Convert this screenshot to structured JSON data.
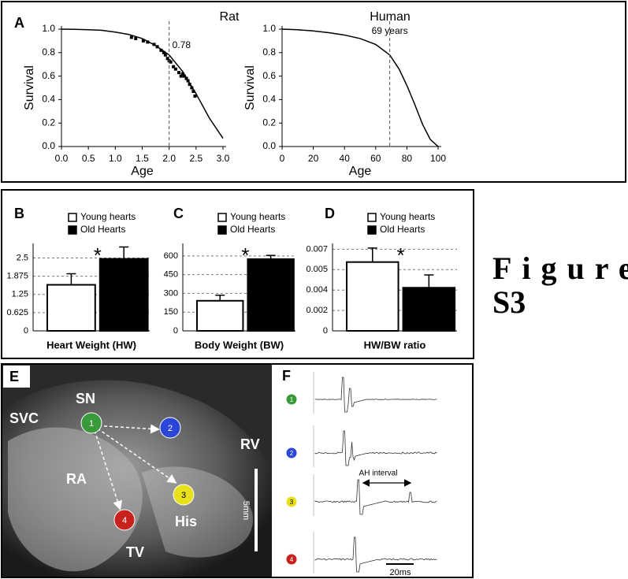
{
  "chart_data": [
    {
      "type": "line",
      "panel": "A",
      "title": "Rat",
      "xlabel": "Age",
      "ylabel": "Survival",
      "x": [
        0,
        0.25,
        0.5,
        0.75,
        1,
        1.25,
        1.5,
        1.75,
        2,
        2.25,
        2.5,
        2.75,
        3
      ],
      "values": [
        1,
        0.998,
        0.995,
        0.99,
        0.975,
        0.955,
        0.92,
        0.86,
        0.78,
        0.64,
        0.45,
        0.24,
        0.07
      ],
      "points_x": [
        1.3,
        1.38,
        1.52,
        1.6,
        1.72,
        1.78,
        1.85,
        1.9,
        1.93,
        1.97,
        2.0,
        2.03,
        2.08,
        2.12,
        2.18,
        2.22,
        2.25,
        2.28,
        2.32,
        2.35,
        2.38,
        2.42,
        2.45,
        2.48
      ],
      "points_y": [
        0.93,
        0.92,
        0.9,
        0.89,
        0.87,
        0.85,
        0.82,
        0.8,
        0.78,
        0.75,
        0.73,
        0.72,
        0.68,
        0.66,
        0.63,
        0.6,
        0.62,
        0.6,
        0.58,
        0.56,
        0.53,
        0.5,
        0.47,
        0.43
      ],
      "marker_x": 2,
      "marker_y": 0.78,
      "xlim": [
        0,
        3
      ],
      "ylim": [
        0,
        1
      ],
      "xticks": [
        {
          "value": 0,
          "label": "0.0"
        },
        0.5,
        {
          "value": 1,
          "label": "1.0"
        },
        1.5,
        {
          "value": 2,
          "label": "2.0"
        },
        2.5,
        {
          "value": 3,
          "label": "3.0"
        }
      ],
      "yticks": [
        {
          "value": 0,
          "label": "0.0"
        },
        0.2,
        0.4,
        0.6,
        0.8,
        {
          "value": 1,
          "label": "1.0"
        }
      ]
    },
    {
      "type": "line",
      "title": "Human",
      "xlabel": "Age",
      "ylabel": "Survival",
      "x": [
        0,
        10,
        20,
        30,
        40,
        50,
        60,
        69,
        75,
        80,
        85,
        90,
        95,
        100
      ],
      "values": [
        1,
        0.995,
        0.985,
        0.97,
        0.95,
        0.92,
        0.87,
        0.78,
        0.66,
        0.52,
        0.36,
        0.19,
        0.06,
        0.0
      ],
      "marker_x": 69,
      "marker_label": "69 years",
      "xlim": [
        0,
        100
      ],
      "ylim": [
        0,
        1
      ],
      "xticks": [
        0,
        20,
        40,
        60,
        80,
        100
      ],
      "yticks": [
        {
          "value": 0,
          "label": "0.0"
        },
        0.2,
        0.4,
        0.6,
        0.8,
        {
          "value": 1,
          "label": "1.0"
        }
      ]
    },
    {
      "type": "bar",
      "panel": "B",
      "xlabel": "Heart Weight (HW)",
      "annotation": "*",
      "grid": true,
      "series": [
        {
          "name": "Young hearts",
          "color": "#ffffff",
          "values": [
            1.58
          ],
          "errors": [
            0.38
          ]
        },
        {
          "name": "Old Hearts",
          "color": "#000000",
          "values": [
            2.47
          ],
          "errors": [
            0.41
          ]
        }
      ],
      "ylim": [
        0,
        3
      ],
      "yticks": [
        0,
        0.625,
        1.25,
        1.875,
        2.5
      ]
    },
    {
      "type": "bar",
      "panel": "C",
      "xlabel": "Body Weight (BW)",
      "annotation": "*",
      "grid": true,
      "series": [
        {
          "name": "Young hearts",
          "color": "#ffffff",
          "values": [
            241
          ],
          "errors": [
            44
          ]
        },
        {
          "name": "Old Hearts",
          "color": "#000000",
          "values": [
            574
          ],
          "errors": [
            30
          ]
        }
      ],
      "ylim": [
        0,
        700
      ],
      "yticks": [
        0,
        150,
        300,
        450,
        600
      ]
    },
    {
      "type": "bar",
      "panel": "D",
      "xlabel": "HW/BW ratio",
      "annotation": "*",
      "grid": true,
      "series": [
        {
          "name": "Young hearts",
          "color": "#ffffff",
          "values": [
            0.0059
          ],
          "errors": [
            0.0012
          ]
        },
        {
          "name": "Old Hearts",
          "color": "#000000",
          "values": [
            0.0037
          ],
          "errors": [
            0.0011
          ]
        }
      ],
      "ylim": [
        0,
        0.0075
      ],
      "yticks": [
        0,
        {
          "value": 0.00175,
          "label": "0.002"
        },
        {
          "value": 0.0035,
          "label": "0.004"
        },
        {
          "value": 0.00525,
          "label": "0.005"
        },
        0.007
      ]
    }
  ],
  "panel_e": {
    "label": "E",
    "regions": [
      "SVC",
      "SN",
      "RA",
      "His",
      "RV",
      "TV"
    ],
    "electrodes": [
      "1",
      "2",
      "3",
      "4"
    ],
    "scale": "5mm"
  },
  "panel_f": {
    "label": "F",
    "interval": "AH interval",
    "scale": "20ms"
  },
  "figure_label": [
    "Figure",
    "S3"
  ]
}
